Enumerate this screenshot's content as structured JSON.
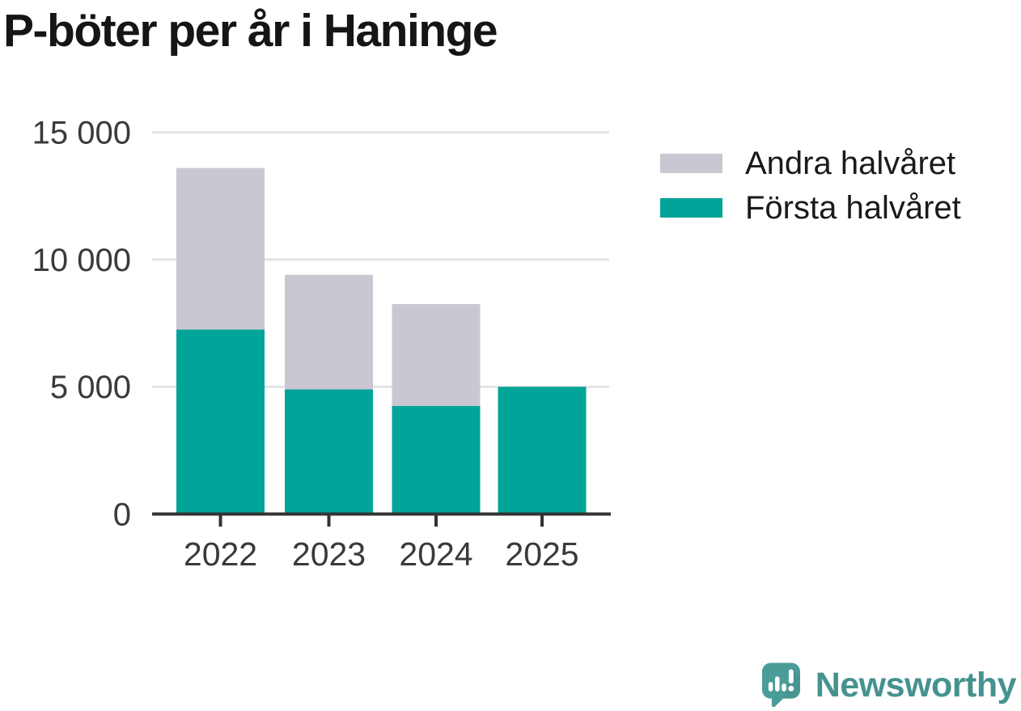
{
  "chart_data": {
    "type": "bar",
    "stacked": true,
    "title": "P-böter per år i Haninge",
    "categories": [
      "2022",
      "2023",
      "2024",
      "2025"
    ],
    "series": [
      {
        "name": "Första halvåret",
        "color": "#00a499",
        "values": [
          7250,
          4900,
          4250,
          5000
        ]
      },
      {
        "name": "Andra halvåret",
        "color": "#c9c7d1",
        "values": [
          6350,
          4500,
          4000,
          0
        ]
      }
    ],
    "totals": [
      13600,
      9400,
      8250,
      5000
    ],
    "ylim": [
      0,
      15000
    ],
    "yticks": [
      0,
      5000,
      10000,
      15000
    ],
    "ytick_labels": [
      "0",
      "5 000",
      "10 000",
      "15 000"
    ],
    "xlabel": "",
    "ylabel": "",
    "grid": true,
    "legend_position": "right-of-plot"
  },
  "legend_order": [
    "Andra halvåret",
    "Första halvåret"
  ],
  "branding": {
    "wordmark": "Newsworthy",
    "logo_color": "#4a9c98",
    "logo_shadow": "#3f8a86",
    "wordmark_color": "#45928f"
  },
  "colors": {
    "background": "#ffffff",
    "title": "#151515",
    "axis_line": "#333333",
    "tick_label": "#3a3a3a",
    "gridline": "#e3e3e3"
  }
}
